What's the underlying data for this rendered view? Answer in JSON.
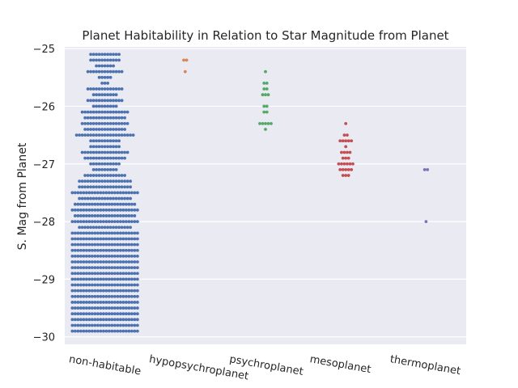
{
  "chart_data": {
    "type": "scatter",
    "subtype": "swarm",
    "title": "Planet Habitability in Relation to Star Magnitude from Planet",
    "xlabel": "",
    "ylabel": "S. Mag from Planet",
    "categories": [
      "non-habitable",
      "hypopsychroplanet",
      "psychroplanet",
      "mesoplanet",
      "thermoplanet"
    ],
    "y_ticks": [
      -25,
      -26,
      -27,
      -28,
      -29,
      -30
    ],
    "ylim": [
      -30.13,
      -24.97
    ],
    "grid": true,
    "background": "#eaeaf2",
    "colors": [
      "#4c72b0",
      "#dd8452",
      "#55a868",
      "#c44e52",
      "#8172b3"
    ],
    "series": [
      {
        "category": "non-habitable",
        "bins": [
          [
            -25.1,
            11
          ],
          [
            -25.2,
            11
          ],
          [
            -25.3,
            7
          ],
          [
            -25.4,
            13
          ],
          [
            -25.5,
            5
          ],
          [
            -25.6,
            3
          ],
          [
            -25.7,
            13
          ],
          [
            -25.8,
            9
          ],
          [
            -25.9,
            13
          ],
          [
            -26.0,
            9
          ],
          [
            -26.1,
            17
          ],
          [
            -26.2,
            15
          ],
          [
            -26.3,
            17
          ],
          [
            -26.4,
            15
          ],
          [
            -26.5,
            21
          ],
          [
            -26.6,
            11
          ],
          [
            -26.7,
            11
          ],
          [
            -26.8,
            17
          ],
          [
            -26.9,
            15
          ],
          [
            -27.0,
            11
          ],
          [
            -27.1,
            9
          ],
          [
            -27.2,
            15
          ],
          [
            -27.3,
            19
          ],
          [
            -27.4,
            19
          ],
          [
            -27.5,
            24
          ],
          [
            -27.6,
            19
          ],
          [
            -27.7,
            22
          ],
          [
            -27.8,
            24
          ],
          [
            -27.9,
            22
          ],
          [
            -28.0,
            24
          ],
          [
            -28.1,
            19
          ],
          [
            -28.2,
            24
          ],
          [
            -28.3,
            24
          ],
          [
            -28.4,
            24
          ],
          [
            -28.5,
            24
          ],
          [
            -28.6,
            24
          ],
          [
            -28.7,
            24
          ],
          [
            -28.8,
            24
          ],
          [
            -28.9,
            24
          ],
          [
            -29.0,
            24
          ],
          [
            -29.1,
            24
          ],
          [
            -29.2,
            24
          ],
          [
            -29.3,
            24
          ],
          [
            -29.4,
            24
          ],
          [
            -29.5,
            24
          ],
          [
            -29.6,
            24
          ],
          [
            -29.7,
            24
          ],
          [
            -29.8,
            24
          ],
          [
            -29.9,
            24
          ]
        ]
      },
      {
        "category": "hypopsychroplanet",
        "bins": [
          [
            -25.2,
            2
          ],
          [
            -25.4,
            1
          ]
        ]
      },
      {
        "category": "psychroplanet",
        "bins": [
          [
            -25.4,
            1
          ],
          [
            -25.6,
            2
          ],
          [
            -25.7,
            2
          ],
          [
            -25.8,
            3
          ],
          [
            -26.0,
            2
          ],
          [
            -26.1,
            2
          ],
          [
            -26.3,
            5
          ],
          [
            -26.4,
            1
          ]
        ]
      },
      {
        "category": "mesoplanet",
        "bins": [
          [
            -26.3,
            1
          ],
          [
            -26.5,
            2
          ],
          [
            -26.6,
            5
          ],
          [
            -26.7,
            1
          ],
          [
            -26.8,
            4
          ],
          [
            -26.9,
            3
          ],
          [
            -27.0,
            6
          ],
          [
            -27.1,
            5
          ],
          [
            -27.2,
            3
          ]
        ]
      },
      {
        "category": "thermoplanet",
        "bins": [
          [
            -27.1,
            2
          ],
          [
            -28.0,
            1
          ]
        ]
      }
    ]
  }
}
